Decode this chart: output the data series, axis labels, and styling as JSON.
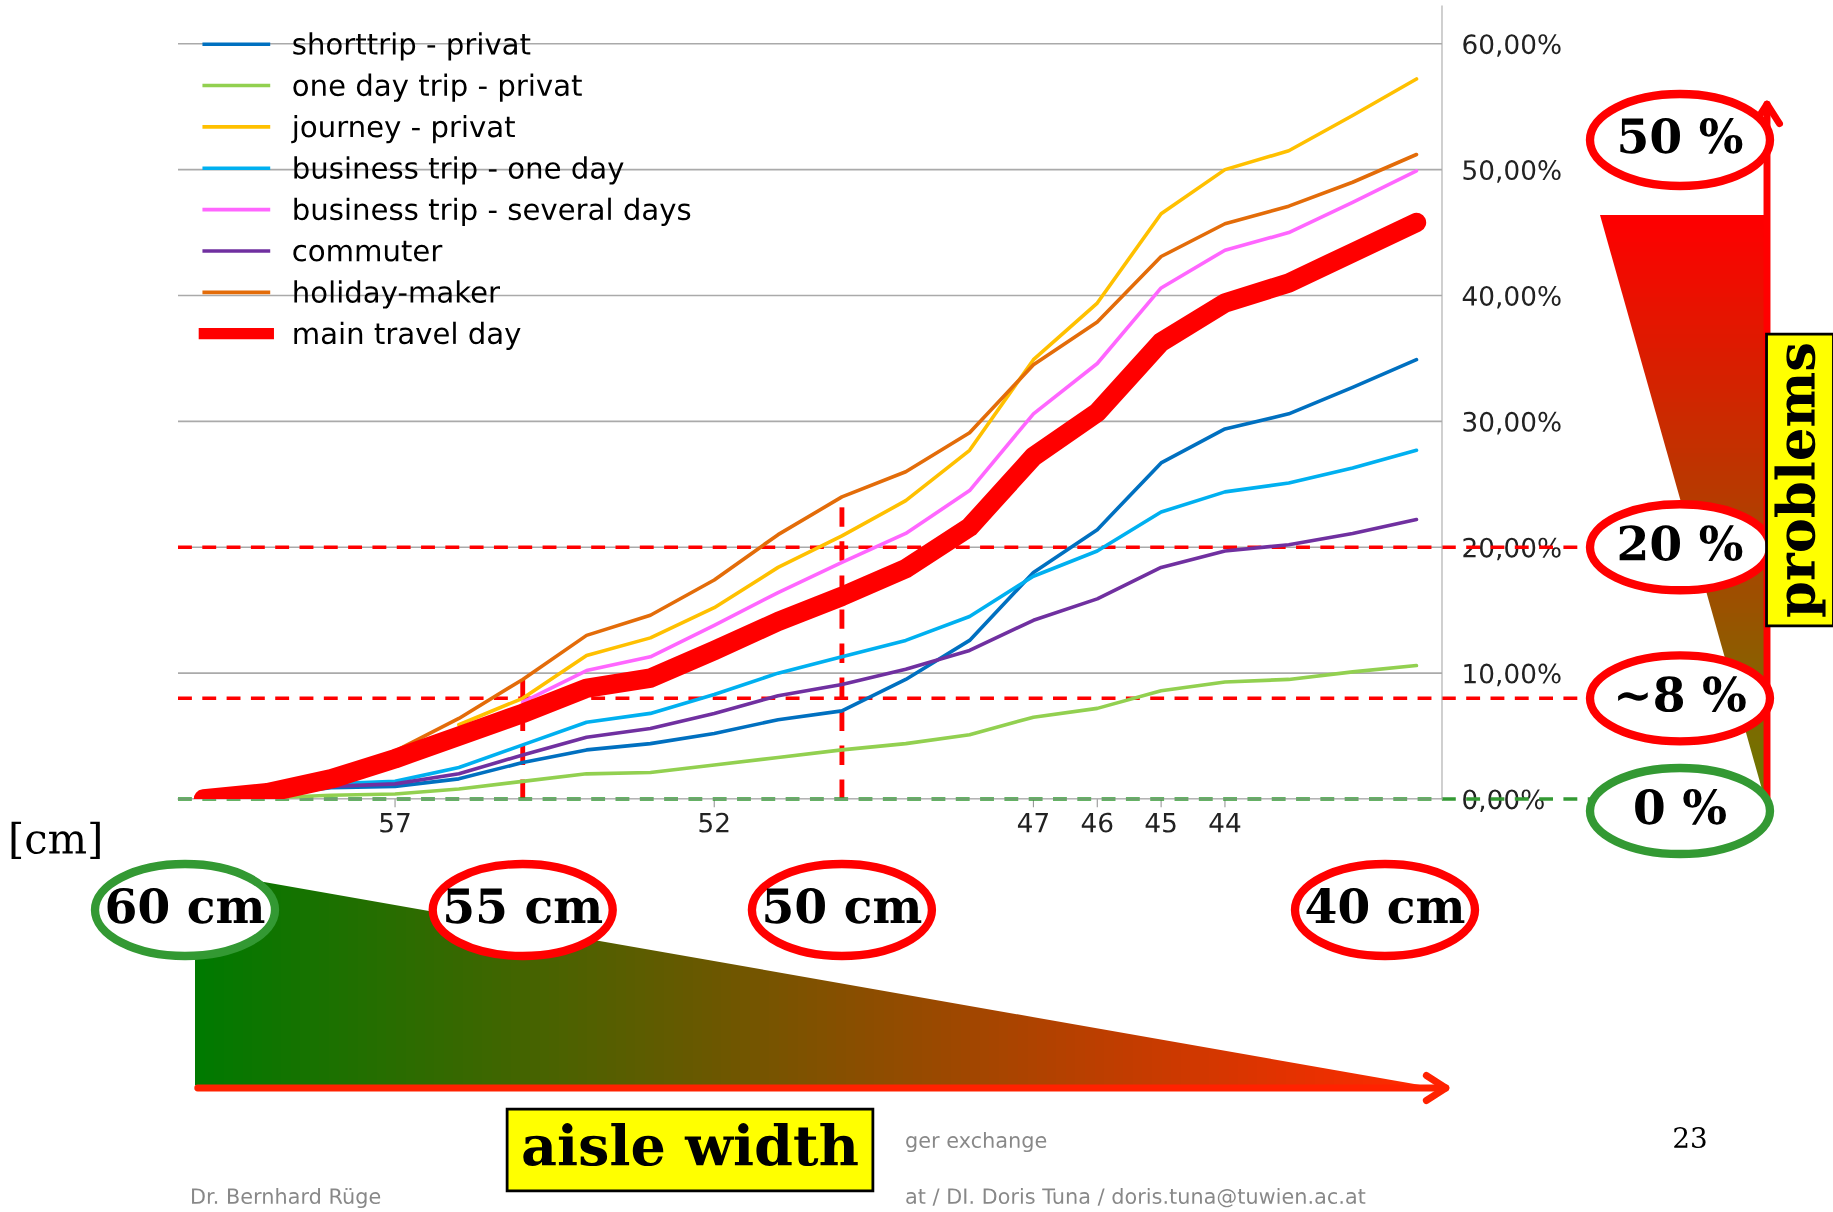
{
  "chart_data": {
    "type": "line",
    "xlabel": "[cm]",
    "x": [
      60,
      59,
      58,
      57,
      56,
      55,
      54,
      53,
      52,
      51,
      50,
      49,
      48,
      47,
      46,
      45,
      44,
      43,
      42,
      41
    ],
    "xlim": [
      60.4,
      40.6
    ],
    "xticks": [
      57,
      52,
      47,
      46,
      45,
      44
    ],
    "ylim": [
      0,
      63
    ],
    "yticks": [
      {
        "value": 0,
        "label": "0,00%"
      },
      {
        "value": 10,
        "label": "10,00%"
      },
      {
        "value": 20,
        "label": "20,00%"
      },
      {
        "value": 30,
        "label": "30,00%"
      },
      {
        "value": 40,
        "label": "40,00%"
      },
      {
        "value": 50,
        "label": "50,00%"
      },
      {
        "value": 60,
        "label": "60,00%"
      }
    ],
    "grid": "y",
    "legend": "top left",
    "series": [
      {
        "name": "shorttrip - privat",
        "color": "#0070c0",
        "values": [
          0,
          0.3,
          0.9,
          1.0,
          1.6,
          2.9,
          3.9,
          4.4,
          5.2,
          6.3,
          7.0,
          9.5,
          12.6,
          18.0,
          21.4,
          26.7,
          29.4,
          30.6,
          32.7,
          34.9
        ]
      },
      {
        "name": "one day trip - privat",
        "color": "#92d050",
        "values": [
          0,
          0.1,
          0.3,
          0.4,
          0.8,
          1.4,
          2.0,
          2.1,
          2.7,
          3.3,
          3.9,
          4.4,
          5.1,
          6.5,
          7.2,
          8.6,
          9.3,
          9.5,
          10.1,
          10.6
        ]
      },
      {
        "name": "journey - privat",
        "color": "#ffc000",
        "values": [
          null,
          null,
          null,
          null,
          5.9,
          8.0,
          11.4,
          12.8,
          15.2,
          18.4,
          20.9,
          23.7,
          27.7,
          34.9,
          39.4,
          46.5,
          50.0,
          51.5,
          54.3,
          57.2
        ]
      },
      {
        "name": "business trip - one day",
        "color": "#00b0f0",
        "values": [
          null,
          null,
          1.2,
          1.4,
          2.5,
          4.3,
          6.1,
          6.8,
          8.3,
          10.0,
          11.3,
          12.6,
          14.5,
          17.7,
          19.7,
          22.8,
          24.4,
          25.1,
          26.3,
          27.7
        ]
      },
      {
        "name": "business trip - several days",
        "color": "#ff66ff",
        "values": [
          null,
          null,
          null,
          null,
          null,
          7.7,
          10.2,
          11.3,
          13.8,
          16.4,
          18.8,
          21.1,
          24.5,
          30.6,
          34.6,
          40.6,
          43.6,
          45.0,
          47.4,
          49.9
        ]
      },
      {
        "name": "commuter",
        "color": "#7030a0",
        "values": [
          null,
          null,
          1.0,
          1.2,
          2.0,
          3.5,
          4.9,
          5.6,
          6.8,
          8.2,
          9.1,
          10.3,
          11.8,
          14.2,
          15.9,
          18.4,
          19.7,
          20.2,
          21.1,
          22.2
        ]
      },
      {
        "name": "holiday-maker",
        "color": "#e36c09",
        "values": [
          null,
          null,
          1.8,
          3.8,
          6.4,
          9.5,
          13.0,
          14.6,
          17.4,
          21.0,
          24.0,
          26.0,
          29.1,
          34.5,
          37.9,
          43.1,
          45.7,
          47.1,
          49.0,
          51.2
        ]
      },
      {
        "name": "main travel day",
        "color": "#ff0000",
        "values": [
          0,
          0.5,
          1.6,
          3.2,
          5.0,
          6.8,
          8.8,
          9.6,
          11.8,
          14.1,
          16.1,
          18.3,
          21.6,
          27.2,
          30.7,
          36.3,
          39.4,
          41.0,
          43.4,
          45.8
        ]
      }
    ],
    "ref_lines": [
      {
        "axis": "x",
        "value": 55,
        "label": "55 cm",
        "color": "#ff0000",
        "line_style": "dashed"
      },
      {
        "axis": "x",
        "value": 50,
        "label": "50 cm",
        "color": "#ff0000",
        "line_style": "dashed"
      },
      {
        "axis": "y",
        "value": 20,
        "label": "20 %",
        "color": "#ff0000",
        "line_style": "dashed"
      },
      {
        "axis": "y",
        "value": 8,
        "label": "~8 %",
        "color": "#ff0000",
        "line_style": "dashed"
      },
      {
        "axis": "y",
        "value": 0,
        "label": "0 %",
        "color": "#339933",
        "line_style": "dashed"
      }
    ],
    "annotations": [
      "60 cm",
      "40 cm",
      "50 %",
      "problems",
      "aisle width",
      "ger exchange",
      "23",
      "Dr. Bernhard Rüge",
      "at / DI. Doris Tuna / doris.tuna@tuwien.ac.at"
    ]
  }
}
